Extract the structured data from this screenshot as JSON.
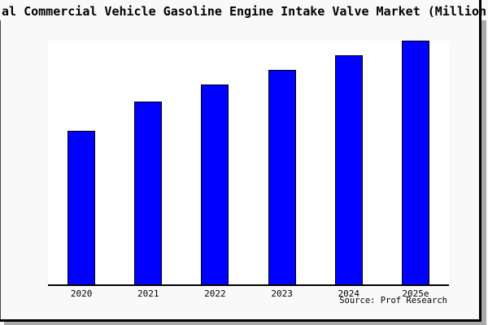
{
  "chart_data": {
    "type": "bar",
    "title": "al Commercial Vehicle Gasoline Engine Intake Valve Market (Million",
    "categories": [
      "2020",
      "2021",
      "2022",
      "2023",
      "2024",
      "2025e"
    ],
    "values": [
      63,
      75,
      82,
      88,
      94,
      100
    ],
    "ylim": [
      0,
      100
    ],
    "xlabel": "",
    "ylabel": "",
    "grid": false,
    "legend": false,
    "y_axis_labels_visible": false,
    "value_scale_note": "relative index estimated from bar heights; tallest bar (2025e) = 100; no numeric axis labels visible in image"
  },
  "source": {
    "label": "Source: Prof Research"
  },
  "colors": {
    "bar_fill": "#0000ff",
    "bar_border": "#000000",
    "figure_background": "#f9f9f9",
    "plot_background": "#ffffff",
    "axis_line": "#000000",
    "frame": "#000000",
    "shadow": "#aaaaaa"
  }
}
